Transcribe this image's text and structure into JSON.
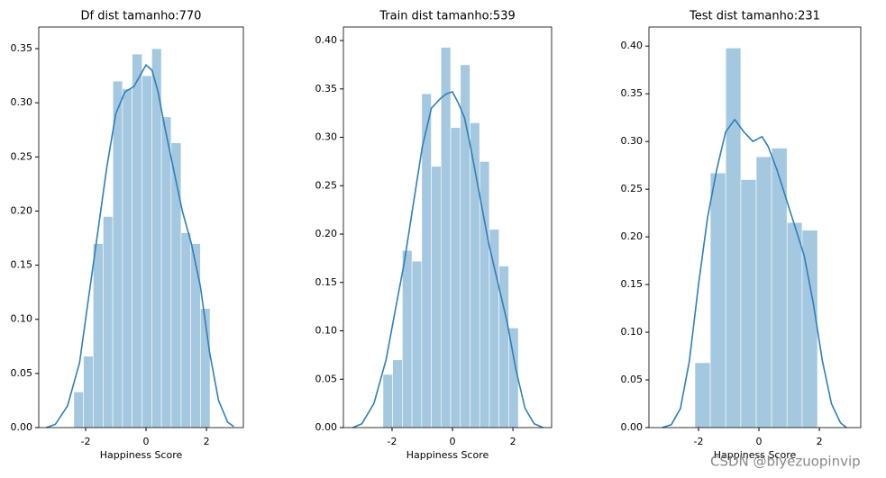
{
  "chart_data": [
    {
      "type": "histogram",
      "title": "Df dist tamanho:770",
      "xlabel": "Happiness Score",
      "bins": [
        -2.39,
        -2.07,
        -1.75,
        -1.42,
        -1.1,
        -0.78,
        -0.46,
        -0.13,
        0.19,
        0.51,
        0.83,
        1.16,
        1.48,
        1.8,
        2.12
      ],
      "values": [
        0.033,
        0.066,
        0.17,
        0.195,
        0.32,
        0.313,
        0.345,
        0.325,
        0.35,
        0.287,
        0.263,
        0.18,
        0.17,
        0.11
      ],
      "color": "#a5c8e1",
      "kde_x": [
        -3.3,
        -3,
        -2.6,
        -2.2,
        -1.9,
        -1.6,
        -1.3,
        -1,
        -0.7,
        -0.4,
        -0.2,
        0,
        0.2,
        0.4,
        0.6,
        0.9,
        1.2,
        1.5,
        1.8,
        2.1,
        2.4,
        2.7,
        2.9
      ],
      "kde_values": [
        0,
        0.003,
        0.02,
        0.06,
        0.12,
        0.18,
        0.24,
        0.29,
        0.31,
        0.315,
        0.325,
        0.335,
        0.33,
        0.31,
        0.28,
        0.24,
        0.2,
        0.17,
        0.13,
        0.07,
        0.025,
        0.005,
        0.001
      ],
      "kde_color": "#2f7fb9",
      "xlim": [
        -3.55,
        3.22
      ],
      "ylim": [
        0,
        0.37
      ],
      "xticks": [
        -2,
        0,
        2
      ],
      "yticks": [
        {
          "value": 0,
          "label": "0.00"
        },
        {
          "value": 0.05,
          "label": "0.05"
        },
        {
          "value": 0.1,
          "label": "0.10"
        },
        {
          "value": 0.15,
          "label": "0.15"
        },
        {
          "value": 0.2,
          "label": "0.20"
        },
        {
          "value": 0.25,
          "label": "0.25"
        },
        {
          "value": 0.3,
          "label": "0.30"
        },
        {
          "value": 0.35,
          "label": "0.35"
        }
      ]
    },
    {
      "type": "histogram",
      "title": "Train dist tamanho:539",
      "xlabel": "Happiness Score",
      "bins": [
        -2.3,
        -1.98,
        -1.66,
        -1.34,
        -1.02,
        -0.7,
        -0.38,
        -0.06,
        0.26,
        0.58,
        0.9,
        1.22,
        1.54,
        1.86,
        2.18
      ],
      "values": [
        0.055,
        0.07,
        0.183,
        0.172,
        0.345,
        0.27,
        0.393,
        0.31,
        0.375,
        0.315,
        0.275,
        0.205,
        0.167,
        0.103
      ],
      "color": "#a5c8e1",
      "kde_x": [
        -3.3,
        -3,
        -2.6,
        -2.2,
        -1.9,
        -1.6,
        -1.3,
        -1,
        -0.7,
        -0.4,
        -0.2,
        0,
        0.2,
        0.4,
        0.6,
        0.9,
        1.2,
        1.5,
        1.8,
        2.1,
        2.4,
        2.7,
        3
      ],
      "kde_values": [
        0,
        0.004,
        0.025,
        0.07,
        0.12,
        0.17,
        0.23,
        0.29,
        0.33,
        0.34,
        0.345,
        0.347,
        0.335,
        0.32,
        0.29,
        0.24,
        0.19,
        0.15,
        0.11,
        0.06,
        0.02,
        0.004,
        0
      ],
      "kde_color": "#2f7fb9",
      "xlim": [
        -3.61,
        3.28
      ],
      "ylim": [
        0,
        0.414
      ],
      "xticks": [
        -2,
        0,
        2
      ],
      "yticks": [
        {
          "value": 0,
          "label": "0.00"
        },
        {
          "value": 0.05,
          "label": "0.05"
        },
        {
          "value": 0.1,
          "label": "0.10"
        },
        {
          "value": 0.15,
          "label": "0.15"
        },
        {
          "value": 0.2,
          "label": "0.20"
        },
        {
          "value": 0.25,
          "label": "0.25"
        },
        {
          "value": 0.3,
          "label": "0.30"
        },
        {
          "value": 0.35,
          "label": "0.35"
        },
        {
          "value": 0.4,
          "label": "0.40"
        }
      ]
    },
    {
      "type": "histogram",
      "title": "Test dist tamanho:231",
      "xlabel": "Happiness Score",
      "bins": [
        -2.12,
        -1.61,
        -1.1,
        -0.6,
        -0.09,
        0.42,
        0.93,
        1.43,
        1.94
      ],
      "values": [
        0.068,
        0.267,
        0.398,
        0.26,
        0.284,
        0.293,
        0.215,
        0.207
      ],
      "color": "#a5c8e1",
      "kde_x": [
        -3.2,
        -2.9,
        -2.6,
        -2.3,
        -2,
        -1.7,
        -1.4,
        -1.1,
        -0.8,
        -0.5,
        -0.2,
        0.1,
        0.3,
        0.6,
        0.9,
        1.2,
        1.5,
        1.8,
        2.1,
        2.4,
        2.7,
        2.9
      ],
      "kde_values": [
        0,
        0.003,
        0.02,
        0.07,
        0.15,
        0.22,
        0.27,
        0.31,
        0.323,
        0.31,
        0.3,
        0.305,
        0.295,
        0.27,
        0.24,
        0.21,
        0.18,
        0.13,
        0.07,
        0.025,
        0.005,
        0
      ],
      "kde_color": "#2f7fb9",
      "xlim": [
        -3.64,
        3.37
      ],
      "ylim": [
        0,
        0.42
      ],
      "xticks": [
        -2,
        0,
        2
      ],
      "yticks": [
        {
          "value": 0,
          "label": "0.00"
        },
        {
          "value": 0.05,
          "label": "0.05"
        },
        {
          "value": 0.1,
          "label": "0.10"
        },
        {
          "value": 0.15,
          "label": "0.15"
        },
        {
          "value": 0.2,
          "label": "0.20"
        },
        {
          "value": 0.25,
          "label": "0.25"
        },
        {
          "value": 0.3,
          "label": "0.30"
        },
        {
          "value": 0.35,
          "label": "0.35"
        },
        {
          "value": 0.4,
          "label": "0.40"
        }
      ]
    }
  ],
  "watermark": "CSDN @biyezuopinvip"
}
